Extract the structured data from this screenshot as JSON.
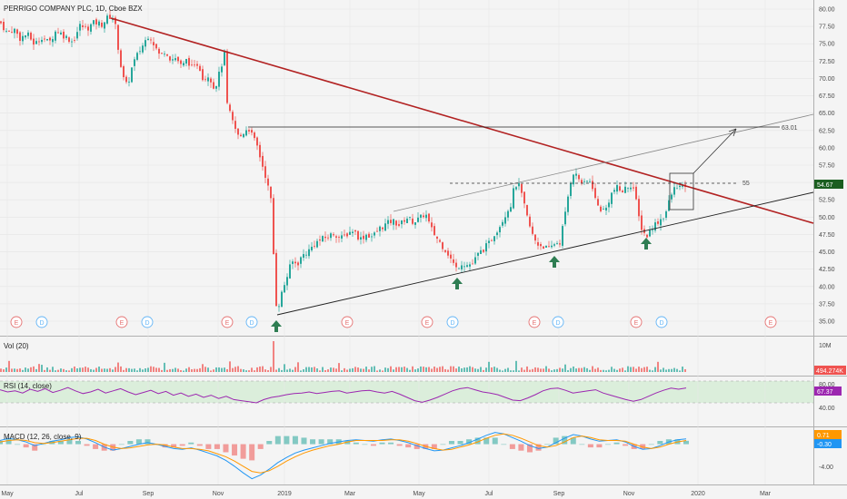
{
  "header": {
    "title": "PERRIGO COMPANY PLC, 1D, Cboe BZX"
  },
  "colors": {
    "up": "#26a69a",
    "down": "#ef5350",
    "trend_red": "#b22222",
    "rsi_line": "#9c27b0",
    "rsi_band": "#dbeedb",
    "macd_line": "#2196f3",
    "signal_line": "#ff9800",
    "arrow_green": "#2e7d52"
  },
  "chart_data": [
    {
      "type": "candlestick",
      "title": "PERRIGO COMPANY PLC, 1D, Cboe BZX",
      "ylim": [
        34,
        81
      ],
      "y_ticks": [
        "80.00",
        "77.50",
        "75.00",
        "72.50",
        "70.00",
        "67.50",
        "65.00",
        "62.50",
        "60.00",
        "57.50",
        "55.00",
        "52.50",
        "50.00",
        "47.50",
        "45.00",
        "42.50",
        "40.00",
        "37.50",
        "35.00"
      ],
      "x_ticks": [
        "May",
        "Jul",
        "Sep",
        "Nov",
        "2019",
        "Mar",
        "May",
        "Jul",
        "Sep",
        "Nov",
        "2020",
        "Mar"
      ],
      "price_path": [
        [
          0,
          78.2
        ],
        [
          8,
          76.5
        ],
        [
          15,
          77.2
        ],
        [
          22,
          75.8
        ],
        [
          30,
          76.4
        ],
        [
          38,
          74.9
        ],
        [
          46,
          76.0
        ],
        [
          54,
          75.1
        ],
        [
          62,
          77.0
        ],
        [
          70,
          76.2
        ],
        [
          80,
          75.3
        ],
        [
          88,
          77.6
        ],
        [
          96,
          77.2
        ],
        [
          104,
          78.1
        ],
        [
          112,
          77.8
        ],
        [
          120,
          79.0
        ],
        [
          126,
          78.5
        ],
        [
          131,
          73.5
        ],
        [
          135,
          70.2
        ],
        [
          140,
          68.8
        ],
        [
          146,
          72.0
        ],
        [
          152,
          73.6
        ],
        [
          158,
          75.0
        ],
        [
          164,
          76.4
        ],
        [
          170,
          74.8
        ],
        [
          176,
          73.2
        ],
        [
          182,
          74.1
        ],
        [
          188,
          72.7
        ],
        [
          194,
          73.0
        ],
        [
          200,
          71.6
        ],
        [
          206,
          72.8
        ],
        [
          212,
          71.2
        ],
        [
          218,
          72.3
        ],
        [
          224,
          69.8
        ],
        [
          230,
          70.6
        ],
        [
          236,
          68.4
        ],
        [
          242,
          71.0
        ],
        [
          247,
          73.6
        ],
        [
          250,
          66.2
        ],
        [
          254,
          64.5
        ],
        [
          258,
          63.0
        ],
        [
          263,
          61.4
        ],
        [
          268,
          62.2
        ],
        [
          273,
          63.0
        ],
        [
          278,
          61.6
        ],
        [
          283,
          60.2
        ],
        [
          288,
          57.8
        ],
        [
          293,
          55.6
        ],
        [
          297,
          53.0
        ],
        [
          300,
          51.4
        ],
        [
          302,
          38.0
        ],
        [
          306,
          37.0
        ],
        [
          311,
          39.5
        ],
        [
          316,
          41.5
        ],
        [
          321,
          43.6
        ],
        [
          327,
          43.2
        ],
        [
          333,
          44.5
        ],
        [
          340,
          45.2
        ],
        [
          347,
          46.3
        ],
        [
          354,
          46.8
        ],
        [
          361,
          47.2
        ],
        [
          368,
          47.7
        ],
        [
          375,
          46.9
        ],
        [
          382,
          47.6
        ],
        [
          389,
          48.2
        ],
        [
          396,
          46.8
        ],
        [
          403,
          47.5
        ],
        [
          410,
          47.2
        ],
        [
          418,
          48.4
        ],
        [
          425,
          49.0
        ],
        [
          432,
          49.5
        ],
        [
          440,
          48.8
        ],
        [
          447,
          50.0
        ],
        [
          455,
          49.3
        ],
        [
          462,
          49.8
        ],
        [
          468,
          50.6
        ],
        [
          474,
          48.4
        ],
        [
          480,
          47.1
        ],
        [
          486,
          46.0
        ],
        [
          492,
          45.0
        ],
        [
          497,
          43.7
        ],
        [
          502,
          42.6
        ],
        [
          508,
          43.4
        ],
        [
          514,
          43.1
        ],
        [
          520,
          43.3
        ],
        [
          526,
          44.6
        ],
        [
          532,
          45.4
        ],
        [
          538,
          46.2
        ],
        [
          544,
          47.6
        ],
        [
          550,
          48.8
        ],
        [
          556,
          50.4
        ],
        [
          562,
          51.8
        ],
        [
          566,
          54.4
        ],
        [
          570,
          54.9
        ],
        [
          574,
          53.2
        ],
        [
          578,
          51.0
        ],
        [
          582,
          49.0
        ],
        [
          587,
          47.0
        ],
        [
          592,
          46.1
        ],
        [
          598,
          45.8
        ],
        [
          604,
          45.3
        ],
        [
          610,
          46.2
        ],
        [
          616,
          46.4
        ],
        [
          622,
          50.5
        ],
        [
          626,
          53.8
        ],
        [
          630,
          56.6
        ],
        [
          634,
          56.0
        ],
        [
          638,
          55.4
        ],
        [
          642,
          54.6
        ],
        [
          648,
          55.4
        ],
        [
          652,
          54.4
        ],
        [
          656,
          52.0
        ],
        [
          660,
          51.2
        ],
        [
          666,
          50.9
        ],
        [
          672,
          53.2
        ],
        [
          678,
          54.3
        ],
        [
          684,
          53.6
        ],
        [
          690,
          54.4
        ],
        [
          696,
          54.8
        ],
        [
          700,
          52.2
        ],
        [
          704,
          49.2
        ],
        [
          708,
          47.8
        ],
        [
          712,
          47.3
        ],
        [
          716,
          48.2
        ],
        [
          720,
          48.9
        ],
        [
          726,
          49.6
        ],
        [
          732,
          50.4
        ],
        [
          738,
          53.0
        ],
        [
          744,
          54.6
        ],
        [
          750,
          54.2
        ],
        [
          755,
          54.67
        ]
      ],
      "annotations": {
        "levels": [
          "63.01",
          "55"
        ],
        "last_price": "54.67"
      },
      "event_markers": [
        "E",
        "D",
        "E",
        "D",
        "E",
        "D",
        "E",
        "E",
        "D",
        "E",
        "D",
        "E",
        "D",
        "E"
      ]
    },
    {
      "type": "bar",
      "title": "Vol (20)",
      "y_ticks": [
        "10M"
      ],
      "last_value": "494.274K"
    },
    {
      "type": "line",
      "title": "RSI (14, close)",
      "ylim": [
        30,
        82
      ],
      "y_ticks": [
        "80.00",
        "40.00"
      ],
      "last_value": "67.37",
      "values": [
        64,
        60,
        62,
        58,
        65,
        61,
        66,
        59,
        63,
        68,
        62,
        57,
        60,
        65,
        58,
        62,
        66,
        60,
        55,
        59,
        63,
        57,
        61,
        54,
        58,
        52,
        56,
        50,
        54,
        48,
        52,
        46,
        44,
        42,
        40,
        46,
        50,
        52,
        55,
        57,
        58,
        60,
        57,
        59,
        61,
        62,
        58,
        60,
        62,
        63,
        60,
        58,
        61,
        56,
        50,
        44,
        41,
        45,
        50,
        56,
        62,
        66,
        68,
        64,
        60,
        58,
        55,
        50,
        45,
        44,
        49,
        55,
        62,
        66,
        67,
        63,
        58,
        60,
        62,
        64,
        58,
        54,
        50,
        46,
        43,
        46,
        52,
        58,
        63,
        67,
        65,
        67.37
      ]
    },
    {
      "type": "line",
      "title": "MACD (12, 26, close, 9)",
      "ylim": [
        -6.2,
        2.4
      ],
      "y_ticks": [
        "0.71",
        "-0.30",
        "-4.00"
      ],
      "series": [
        {
          "values": [
            0.5,
            0.8,
            0.6,
            0.3,
            -0.2,
            0.1,
            0.4,
            0.6,
            0.9,
            1.0,
            0.7,
            0.2,
            -0.4,
            -0.8,
            -0.6,
            -0.3,
            0.0,
            0.2,
            0.0,
            -0.3,
            -0.6,
            -0.7,
            -0.5,
            -0.8,
            -1.2,
            -1.6,
            -2.2,
            -3.0,
            -3.9,
            -4.7,
            -4.2,
            -3.4,
            -2.5,
            -1.8,
            -1.2,
            -0.8,
            -0.5,
            -0.2,
            0.1,
            0.3,
            0.5,
            0.6,
            0.5,
            0.4,
            0.6,
            0.7,
            0.5,
            0.2,
            -0.2,
            -0.6,
            -0.9,
            -0.8,
            -0.5,
            -0.2,
            0.2,
            0.7,
            1.2,
            1.6,
            1.4,
            0.9,
            0.4,
            -0.2,
            -0.6,
            -0.4,
            0.2,
            0.8,
            1.3,
            1.1,
            0.7,
            0.4,
            0.5,
            0.6,
            0.3,
            -0.3,
            -0.7,
            -0.6,
            -0.2,
            0.3,
            0.6,
            0.71
          ]
        },
        {
          "values": [
            0.3,
            0.5,
            0.6,
            0.5,
            0.2,
            0.1,
            0.2,
            0.4,
            0.6,
            0.8,
            0.8,
            0.5,
            0.0,
            -0.4,
            -0.6,
            -0.5,
            -0.3,
            -0.1,
            0.0,
            -0.1,
            -0.4,
            -0.6,
            -0.6,
            -0.7,
            -0.9,
            -1.3,
            -1.7,
            -2.3,
            -3.0,
            -3.7,
            -3.9,
            -3.6,
            -3.0,
            -2.3,
            -1.7,
            -1.2,
            -0.8,
            -0.5,
            -0.2,
            0.0,
            0.3,
            0.5,
            0.5,
            0.5,
            0.5,
            0.6,
            0.6,
            0.4,
            0.1,
            -0.3,
            -0.6,
            -0.8,
            -0.7,
            -0.4,
            -0.1,
            0.3,
            0.8,
            1.2,
            1.4,
            1.2,
            0.8,
            0.3,
            -0.2,
            -0.4,
            -0.2,
            0.3,
            0.9,
            1.1,
            0.9,
            0.6,
            0.5,
            0.5,
            0.4,
            0.0,
            -0.4,
            -0.6,
            -0.4,
            0.0,
            0.3,
            0.5
          ]
        }
      ]
    }
  ]
}
